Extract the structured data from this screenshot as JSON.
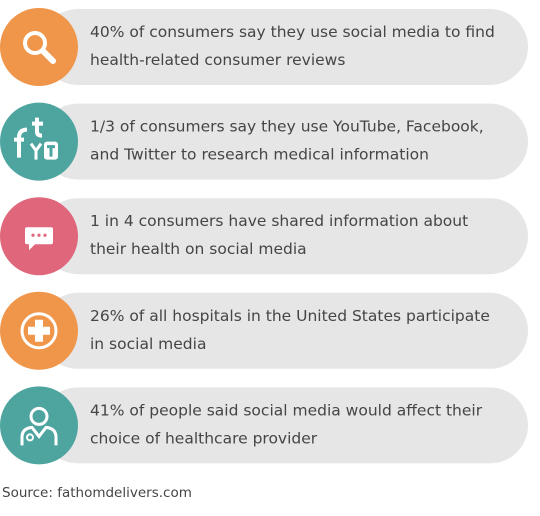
{
  "items": [
    {
      "color": "#f0964b",
      "lines": [
        "40% of consumers say they use social media to find",
        "health-related consumer reviews"
      ]
    },
    {
      "color": "#4ea5a0",
      "lines": [
        "1/3 of consumers say they use YouTube, Facebook,",
        "and Twitter to research medical information"
      ]
    },
    {
      "color": "#e0667c",
      "lines": [
        "1 in 4 consumers have shared information about",
        "their health on social media"
      ]
    },
    {
      "color": "#f0964b",
      "lines": [
        "26% of all hospitals in the United States participate",
        "in social media"
      ]
    },
    {
      "color": "#4ea5a0",
      "lines": [
        "41% of people said social media would affect their",
        "choice of healthcare provider"
      ]
    }
  ],
  "source": "Source: fathomdelivers.com"
}
